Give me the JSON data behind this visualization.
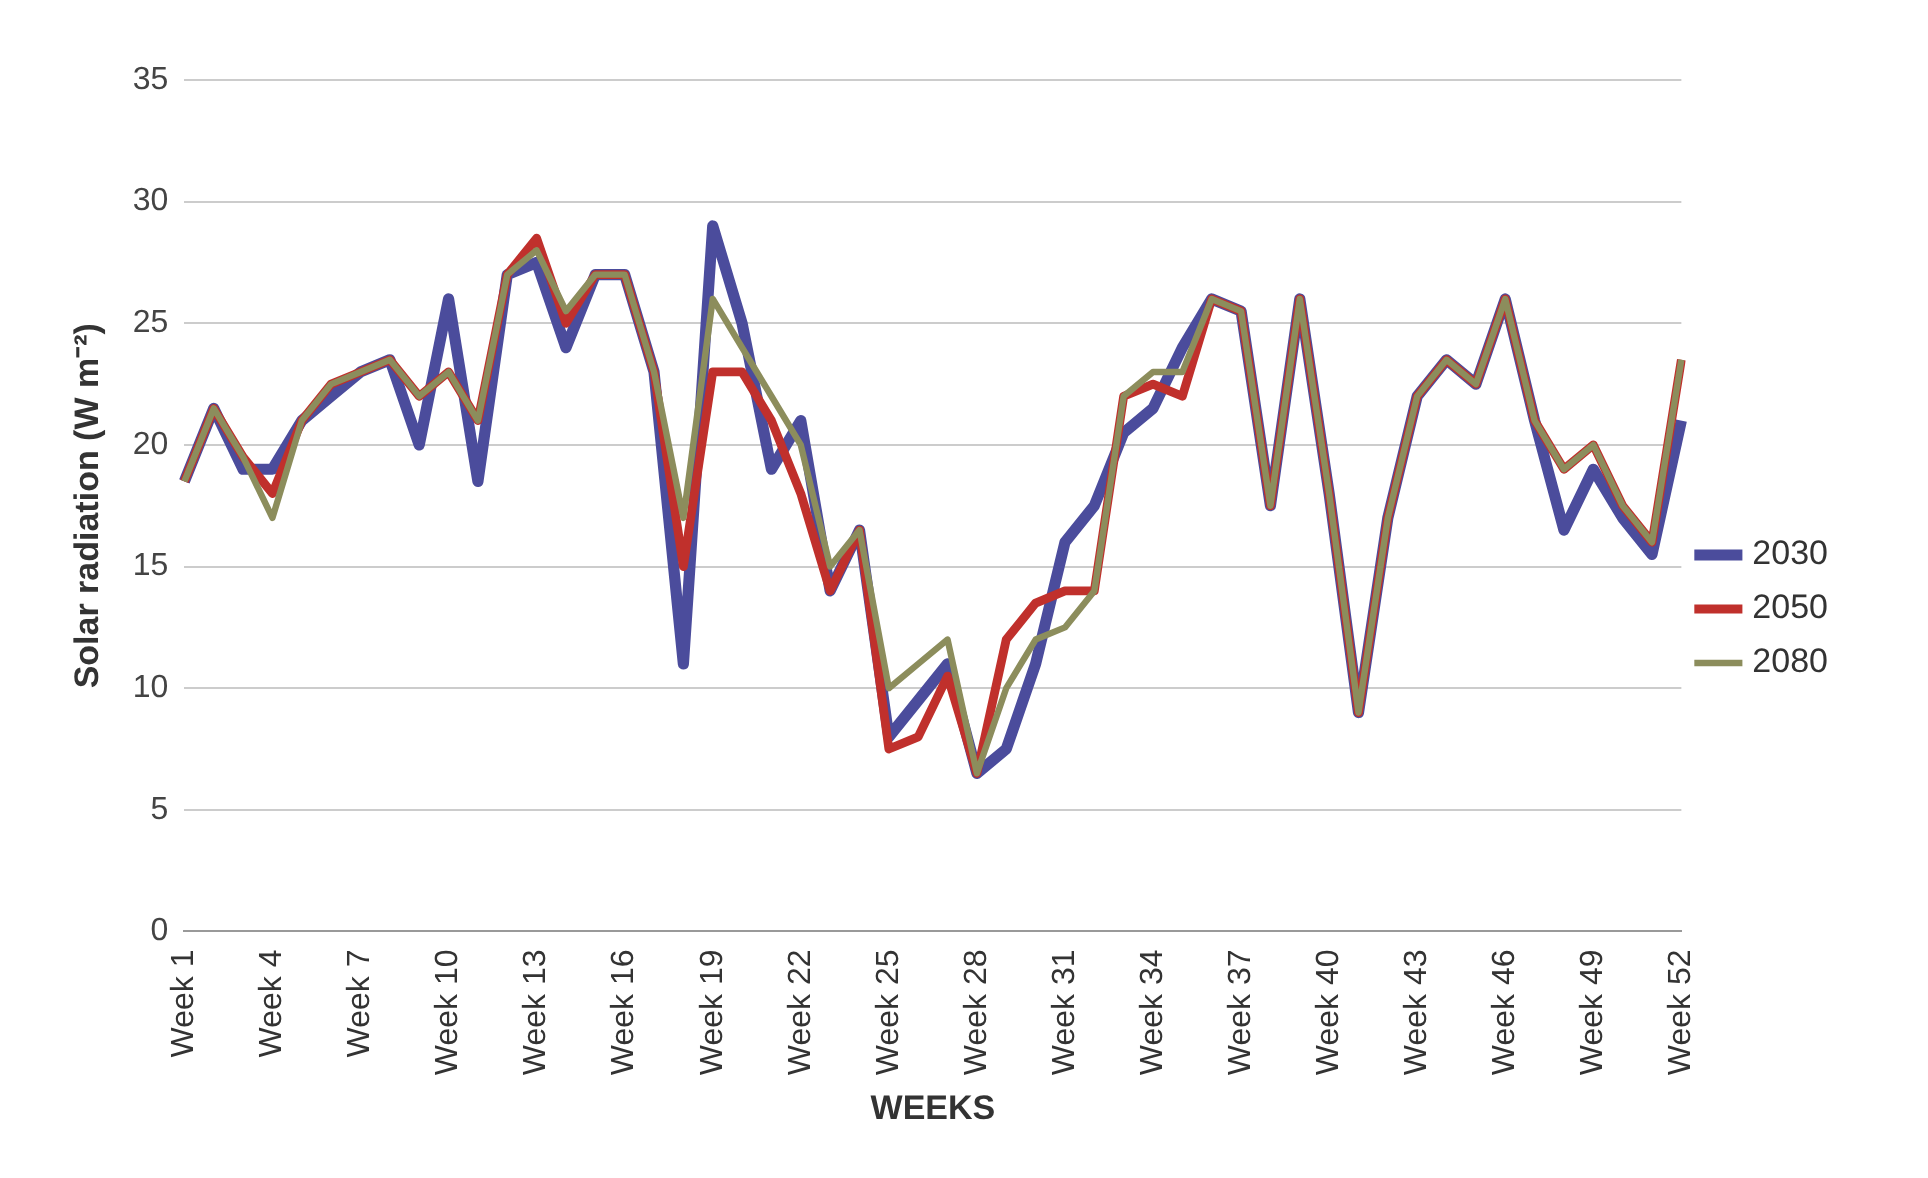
{
  "chart_data": {
    "type": "line",
    "xlabel": "WEEKS",
    "ylabel": "Solar radiation (W m⁻²)",
    "categories": [
      "Week 1",
      null,
      null,
      "Week 4",
      null,
      null,
      "Week 7",
      null,
      null,
      "Week 10",
      null,
      null,
      "Week 13",
      null,
      null,
      "Week 16",
      null,
      null,
      "Week 19",
      null,
      null,
      "Week 22",
      null,
      null,
      "Week 25",
      null,
      null,
      "Week 28",
      null,
      null,
      "Week 31",
      null,
      null,
      "Week 34",
      null,
      null,
      "Week 37",
      null,
      null,
      "Week 40",
      null,
      null,
      "Week 43",
      null,
      null,
      "Week 46",
      null,
      null,
      "Week 49",
      null,
      null,
      "Week 52"
    ],
    "series": [
      {
        "name": "2030",
        "color": "#4b4c9c",
        "values": [
          18.5,
          21.5,
          19,
          19,
          21,
          22,
          23,
          23.5,
          20,
          26,
          18.5,
          27,
          27.5,
          24,
          27,
          27,
          23,
          11,
          29,
          25,
          19,
          21,
          14,
          16.5,
          8,
          9.5,
          11,
          6.5,
          7.5,
          11,
          16,
          17.5,
          20.5,
          21.5,
          24,
          26,
          25.5,
          17.5,
          26,
          18,
          9,
          17,
          22,
          23.5,
          22.5,
          26,
          21,
          16.5,
          19,
          17,
          15.5,
          21
        ]
      },
      {
        "name": "2050",
        "color": "#c0302c",
        "values": [
          18.5,
          21.5,
          19.5,
          18,
          21,
          22.5,
          23,
          23.5,
          22,
          23,
          21,
          27,
          28.5,
          25,
          27,
          27,
          23,
          15,
          23,
          23,
          21,
          18,
          14,
          16.5,
          7.5,
          8,
          10.5,
          6.5,
          12,
          13.5,
          14,
          14,
          22,
          22.5,
          22,
          26,
          25.5,
          17.5,
          26,
          18,
          9,
          17,
          22,
          23.5,
          22.5,
          26,
          21,
          19,
          20,
          17.5,
          16,
          23.5
        ]
      },
      {
        "name": "2080",
        "color": "#8c8d5c",
        "values": [
          18.5,
          21.5,
          19.5,
          17,
          21,
          22.5,
          23,
          23.5,
          22,
          23,
          21,
          27,
          28,
          25.5,
          27,
          27,
          23,
          17,
          26,
          24,
          22,
          20,
          15,
          16.5,
          10,
          11,
          12,
          6.5,
          10,
          12,
          12.5,
          14,
          22,
          23,
          23,
          26,
          25.5,
          17.5,
          26,
          18,
          9,
          17,
          22,
          23.5,
          22.5,
          26,
          21,
          19,
          20,
          17.5,
          16,
          23.5
        ]
      }
    ],
    "ylim": [
      0,
      35
    ],
    "yticks": [
      0,
      5,
      10,
      15,
      20,
      25,
      30,
      35
    ],
    "grid": "y",
    "legend": "right",
    "marker": "none",
    "line_style": "solid"
  }
}
